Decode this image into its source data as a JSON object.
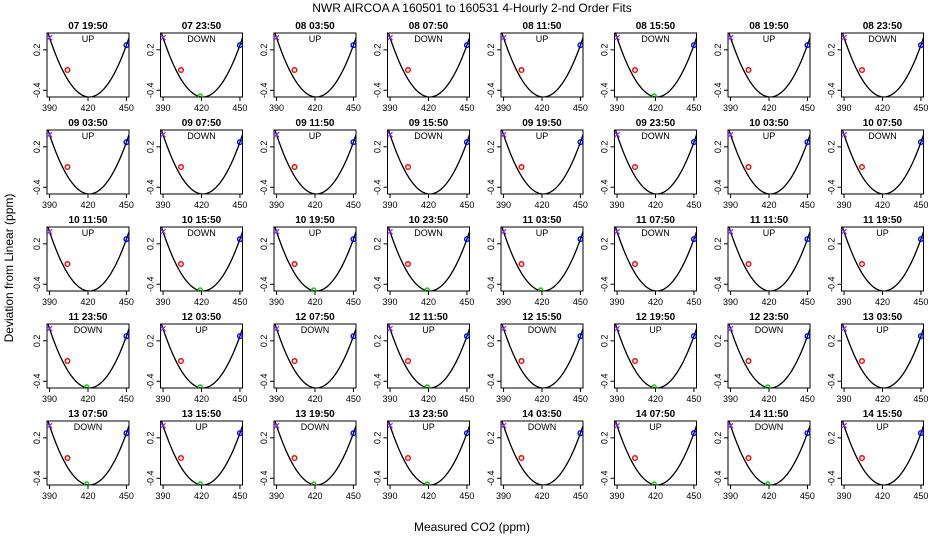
{
  "title": "NWR   AIRCOA A   160501 to 160531   4-Hourly 2-nd Order Fits",
  "xlabel": "Measured CO2 (ppm)",
  "ylabel": "Deviation from Linear (ppm)",
  "colors": {
    "curve": "#000000",
    "low_std": "#8a2be2",
    "mid_std": "#ff0000",
    "ref_std": "#00cc00",
    "high_std": "#0000ff"
  },
  "chart_data": {
    "type": "scatter",
    "layout": "small-multiples 5 rows x 8 columns",
    "xlim": [
      388,
      452
    ],
    "ylim": [
      -0.5,
      0.45
    ],
    "xticks": [
      390,
      420,
      450
    ],
    "yticks": [
      0.2,
      -0.4
    ],
    "ytick_labels": [
      "0.2",
      "-0.4"
    ],
    "curve": "quadratic fit, vertex near x=421, y=-0.5",
    "points_x": [
      390,
      404,
      419,
      450
    ],
    "points_y": [
      0.38,
      -0.1,
      -0.5,
      0.27
    ],
    "panels": [
      {
        "label": "07 19:50",
        "dir": "UP",
        "ref": false
      },
      {
        "label": "07 23:50",
        "dir": "DOWN",
        "ref": true
      },
      {
        "label": "08 03:50",
        "dir": "UP",
        "ref": false
      },
      {
        "label": "08 07:50",
        "dir": "DOWN",
        "ref": false
      },
      {
        "label": "08 11:50",
        "dir": "UP",
        "ref": false
      },
      {
        "label": "08 15:50",
        "dir": "DOWN",
        "ref": true
      },
      {
        "label": "08 19:50",
        "dir": "UP",
        "ref": false
      },
      {
        "label": "08 23:50",
        "dir": "DOWN",
        "ref": false
      },
      {
        "label": "09 03:50",
        "dir": "UP",
        "ref": false
      },
      {
        "label": "09 07:50",
        "dir": "DOWN",
        "ref": false
      },
      {
        "label": "09 11:50",
        "dir": "UP",
        "ref": false
      },
      {
        "label": "09 15:50",
        "dir": "DOWN",
        "ref": false
      },
      {
        "label": "09 19:50",
        "dir": "UP",
        "ref": false
      },
      {
        "label": "09 23:50",
        "dir": "DOWN",
        "ref": false
      },
      {
        "label": "10 03:50",
        "dir": "UP",
        "ref": false
      },
      {
        "label": "10 07:50",
        "dir": "DOWN",
        "ref": false
      },
      {
        "label": "10 11:50",
        "dir": "UP",
        "ref": false
      },
      {
        "label": "10 15:50",
        "dir": "DOWN",
        "ref": true
      },
      {
        "label": "10 19:50",
        "dir": "UP",
        "ref": true
      },
      {
        "label": "10 23:50",
        "dir": "DOWN",
        "ref": true
      },
      {
        "label": "11 03:50",
        "dir": "UP",
        "ref": true
      },
      {
        "label": "11 07:50",
        "dir": "DOWN",
        "ref": false
      },
      {
        "label": "11 11:50",
        "dir": "UP",
        "ref": false
      },
      {
        "label": "11 19:50",
        "dir": "UP",
        "ref": false
      },
      {
        "label": "11 23:50",
        "dir": "DOWN",
        "ref": true
      },
      {
        "label": "12 03:50",
        "dir": "UP",
        "ref": true
      },
      {
        "label": "12 07:50",
        "dir": "DOWN",
        "ref": false
      },
      {
        "label": "12 11:50",
        "dir": "UP",
        "ref": true
      },
      {
        "label": "12 15:50",
        "dir": "DOWN",
        "ref": false
      },
      {
        "label": "12 19:50",
        "dir": "UP",
        "ref": true
      },
      {
        "label": "12 23:50",
        "dir": "DOWN",
        "ref": true
      },
      {
        "label": "13 03:50",
        "dir": "UP",
        "ref": false
      },
      {
        "label": "13 07:50",
        "dir": "DOWN",
        "ref": true
      },
      {
        "label": "13 15:50",
        "dir": "UP",
        "ref": true
      },
      {
        "label": "13 19:50",
        "dir": "DOWN",
        "ref": true
      },
      {
        "label": "13 23:50",
        "dir": "UP",
        "ref": true
      },
      {
        "label": "14 03:50",
        "dir": "DOWN",
        "ref": false
      },
      {
        "label": "14 07:50",
        "dir": "UP",
        "ref": true
      },
      {
        "label": "14 11:50",
        "dir": "DOWN",
        "ref": true
      },
      {
        "label": "14 15:50",
        "dir": "UP",
        "ref": false
      }
    ]
  }
}
